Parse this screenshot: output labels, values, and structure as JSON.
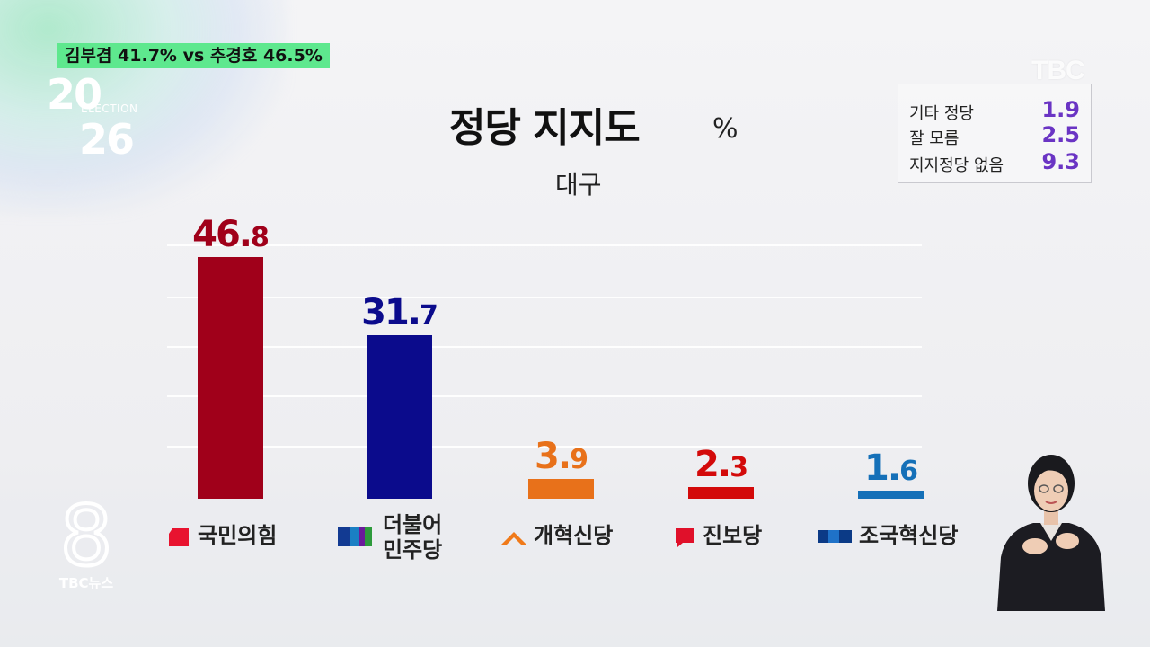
{
  "ticker": "김부겸 41.7% vs 추경호 46.5%",
  "election_logo": {
    "top": "20",
    "mid": "ELECTION",
    "bottom": "26"
  },
  "watermark": "TBC",
  "broadcaster_logo": {
    "numeral": "8",
    "text": "TBC뉴스"
  },
  "chart_data": {
    "type": "bar",
    "title": "정당 지지도",
    "unit": "%",
    "subtitle": "대구",
    "categories": [
      "국민의힘",
      "더불어 민주당",
      "개혁신당",
      "진보당",
      "조국혁신당"
    ],
    "values": [
      46.8,
      31.7,
      3.9,
      2.3,
      1.6
    ],
    "value_labels": [
      {
        "int": "46.",
        "dec": "8"
      },
      {
        "int": "31.",
        "dec": "7"
      },
      {
        "int": "3.",
        "dec": "9"
      },
      {
        "int": "2.",
        "dec": "3"
      },
      {
        "int": "1.",
        "dec": "6"
      }
    ],
    "colors": [
      "#a0001a",
      "#0b0b8c",
      "#e8711a",
      "#d30a0a",
      "#1570b8"
    ],
    "ylim": [
      0,
      50
    ],
    "grid": true,
    "legend_other": [
      {
        "label": "기타 정당",
        "value": "1.9"
      },
      {
        "label": "잘 모름",
        "value": "2.5"
      },
      {
        "label": "지지정당 없음",
        "value": "9.3"
      }
    ],
    "legend_position": "top-right"
  }
}
